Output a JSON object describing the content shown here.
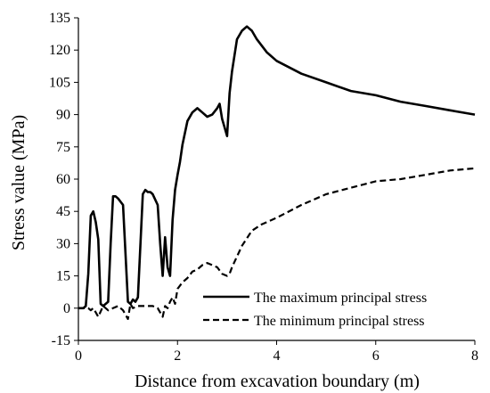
{
  "chart_data": {
    "type": "line",
    "title": "",
    "xlabel": "Distance from excavation boundary (m)",
    "ylabel": "Stress value (MPa)",
    "xlim": [
      0,
      8
    ],
    "ylim": [
      -15,
      135
    ],
    "xticks": [
      "0",
      "2",
      "4",
      "6",
      "8"
    ],
    "yticks": [
      "-15",
      "0",
      "15",
      "30",
      "45",
      "60",
      "75",
      "90",
      "105",
      "120",
      "135"
    ],
    "grid": false,
    "legend_position": "lower-right",
    "series": [
      {
        "name": "The maximum principal stress",
        "style": "solid",
        "color": "#000000",
        "x": [
          0,
          0.1,
          0.15,
          0.2,
          0.25,
          0.3,
          0.35,
          0.4,
          0.45,
          0.5,
          0.6,
          0.65,
          0.7,
          0.75,
          0.8,
          0.9,
          1.0,
          1.05,
          1.1,
          1.15,
          1.2,
          1.3,
          1.35,
          1.4,
          1.45,
          1.5,
          1.6,
          1.65,
          1.7,
          1.75,
          1.8,
          1.85,
          1.9,
          1.95,
          2.0,
          2.05,
          2.1,
          2.2,
          2.3,
          2.4,
          2.5,
          2.6,
          2.7,
          2.8,
          2.85,
          2.9,
          3.0,
          3.05,
          3.1,
          3.2,
          3.3,
          3.4,
          3.5,
          3.6,
          3.8,
          4.0,
          4.5,
          5.0,
          5.5,
          6.0,
          6.5,
          7.0,
          7.5,
          8.0
        ],
        "y": [
          0,
          0,
          1,
          16,
          43,
          45,
          40,
          32,
          2,
          1,
          3,
          30,
          52,
          52,
          51,
          48,
          3,
          2,
          4,
          3,
          5,
          53,
          55,
          54,
          54,
          53,
          48,
          30,
          15,
          33,
          19,
          15,
          41,
          55,
          62,
          68,
          76,
          87,
          91,
          93,
          91,
          89,
          90,
          93,
          95,
          88,
          80,
          100,
          110,
          125,
          129,
          131,
          129,
          125,
          119,
          115,
          109,
          105,
          101,
          99,
          96,
          94,
          92,
          90
        ]
      },
      {
        "name": "The minimum principal stress",
        "style": "dashed",
        "color": "#000000",
        "x": [
          0,
          0.1,
          0.2,
          0.25,
          0.3,
          0.35,
          0.4,
          0.5,
          0.6,
          0.7,
          0.8,
          0.9,
          1.0,
          1.05,
          1.1,
          1.2,
          1.3,
          1.4,
          1.5,
          1.6,
          1.7,
          1.75,
          1.8,
          1.85,
          1.9,
          1.95,
          2.0,
          2.1,
          2.2,
          2.3,
          2.4,
          2.5,
          2.6,
          2.7,
          2.8,
          2.9,
          3.0,
          3.05,
          3.1,
          3.2,
          3.3,
          3.5,
          3.7,
          4.0,
          4.5,
          5.0,
          5.5,
          6.0,
          6.5,
          7.0,
          7.5,
          8.0
        ],
        "y": [
          0,
          0,
          0,
          -1,
          0,
          -2,
          -4,
          1,
          -1,
          0,
          1,
          -1,
          -5,
          2,
          0,
          1,
          1,
          1,
          1,
          0,
          -4,
          1,
          0,
          3,
          5,
          2,
          9,
          12,
          14,
          17,
          18,
          20,
          21,
          20,
          19,
          16,
          15,
          16,
          19,
          24,
          29,
          36,
          39,
          42,
          48,
          53,
          56,
          59,
          60,
          62,
          64,
          65
        ]
      }
    ]
  }
}
